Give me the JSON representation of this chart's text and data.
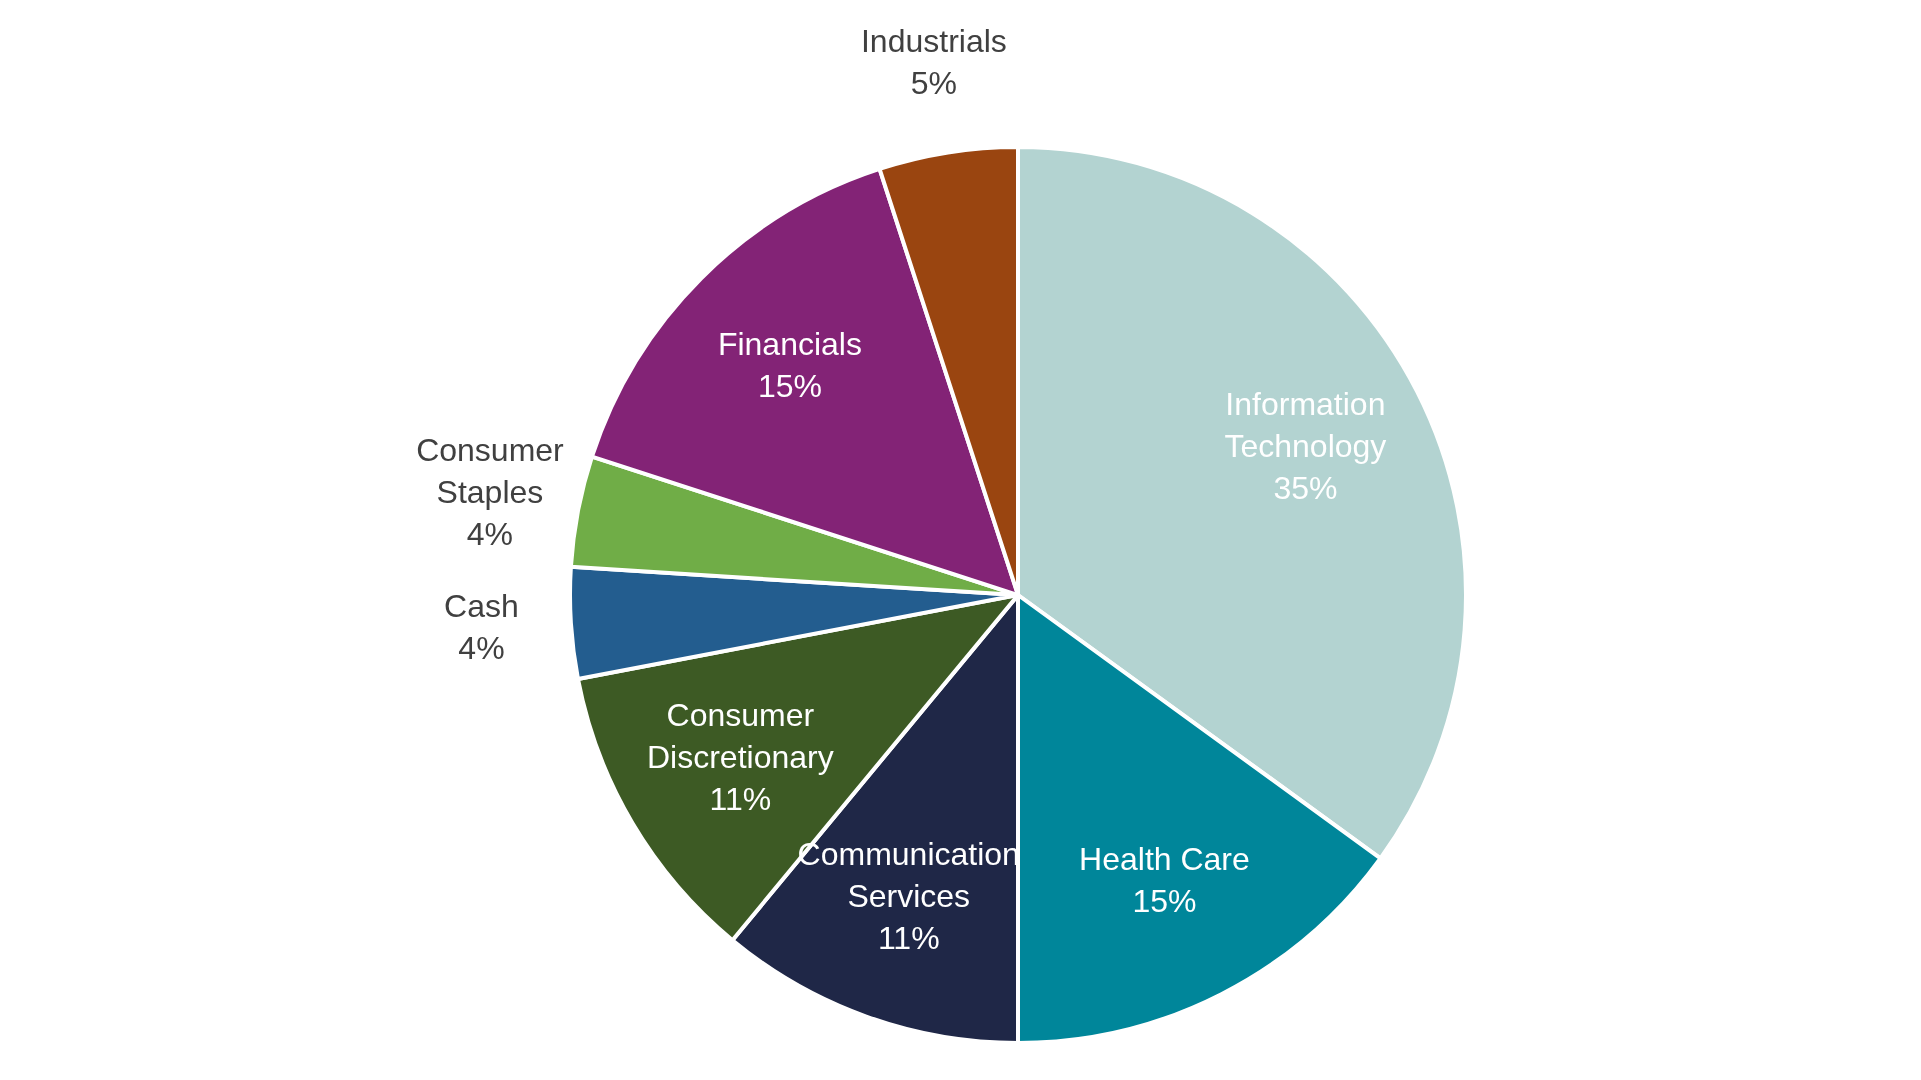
{
  "chart_data": {
    "type": "pie",
    "categories": [
      "Information Technology",
      "Health Care",
      "Communication Services",
      "Consumer Discretionary",
      "Cash",
      "Consumer Staples",
      "Financials",
      "Industrials"
    ],
    "values": [
      35,
      15,
      11,
      11,
      4,
      4,
      15,
      5
    ],
    "colors": [
      "#b3d3d1",
      "#00869a",
      "#1f2747",
      "#3d5a24",
      "#235d8f",
      "#70ad47",
      "#832376",
      "#9a4510"
    ],
    "value_labels": [
      "35%",
      "15%",
      "11%",
      "11%",
      "4%",
      "4%",
      "15%",
      "5%"
    ],
    "legend": false
  }
}
